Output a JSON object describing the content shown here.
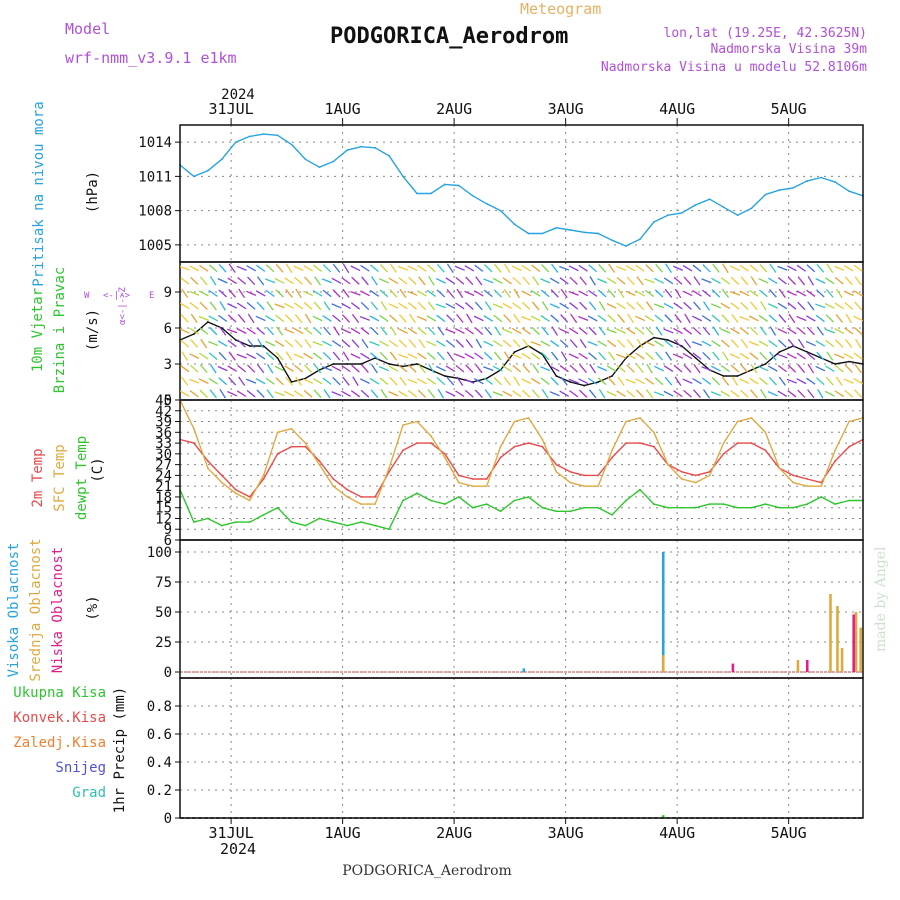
{
  "header": {
    "model_label": "Model",
    "model_name": "wrf-nmm_v3.9.1 e1km",
    "meteogram_label": "Meteogram",
    "station": "PODGORICA_Aerodrom",
    "lonlat": "lon,lat (19.25E, 42.3625N)",
    "altitude": "Nadmorska Visina 39m",
    "model_altitude": "Nadmorska Visina u modelu 52.8106m",
    "footer_station": "PODGORICA_Aerodrom",
    "credit": "made by Angel",
    "year": "2024"
  },
  "colors": {
    "pressure": "#29a3e0",
    "temp2m": "#e84a4a",
    "sfc": "#e0a940",
    "dew": "#2ec52e",
    "high_cloud": "#29a3e0",
    "mid_cloud": "#e0a940",
    "low_cloud": "#e0208a",
    "magenta_text": "#b050d8",
    "title_orange": "#e8b060"
  },
  "days": [
    "31JUL",
    "1AUG",
    "2AUG",
    "3AUG",
    "4AUG",
    "5AUG"
  ],
  "panels": {
    "pressure": {
      "ylabel_main": "Pritisak na nivou mora",
      "unit": "(hPa)"
    },
    "wind": {
      "ylabel_1": "10m Vjetar",
      "ylabel_2": "Brzina i Pravac",
      "unit": "(m/s)",
      "compass": [
        "W",
        "<-|->",
        "E",
        "N",
        "^",
        "|",
        "v",
        "S"
      ]
    },
    "temp": {
      "ylabel_2m": "2m Temp",
      "ylabel_sfc": "SFC Temp",
      "ylabel_dew": "dewpt Temp",
      "unit": "(C)"
    },
    "cloud": {
      "ylabel_high": "Visoka Oblacnost",
      "ylabel_mid": "Srednja Oblacnost",
      "ylabel_low": "Niska Oblacnost",
      "unit": "(%)"
    },
    "precip": {
      "legend": [
        "Ukupna Kisa",
        "Konvek.Kisa",
        "Zaledj.Kisa",
        "Snijeg",
        "Grad"
      ],
      "legend_colors": [
        "#2ec52e",
        "#e84a4a",
        "#f08030",
        "#5050d8",
        "#30c0b0"
      ],
      "ylabel": "1hr Precip (mm)"
    }
  },
  "chart_data": [
    {
      "type": "line",
      "title": "",
      "xlabel": "",
      "ylabel": "(hPa)",
      "x_unit": "hours from start of plot (31 JUL 2024 ~ 13 UTC)",
      "ylim": [
        1003.5,
        1015.5
      ],
      "yticks": [
        1005,
        1008,
        1011,
        1014
      ],
      "series": [
        {
          "name": "Pritisak na nivou mora",
          "x": [
            0,
            3,
            6,
            9,
            12,
            15,
            18,
            21,
            24,
            27,
            30,
            33,
            36,
            39,
            42,
            45,
            48,
            51,
            54,
            57,
            60,
            63,
            66,
            69,
            72,
            75,
            78,
            81,
            84,
            87,
            90,
            93,
            96,
            99,
            102,
            105,
            108,
            111,
            114,
            117,
            120,
            123,
            126,
            129,
            132,
            135,
            138,
            141,
            144,
            147
          ],
          "values": [
            1012.0,
            1011.0,
            1011.5,
            1012.5,
            1014.0,
            1014.5,
            1014.7,
            1014.6,
            1013.8,
            1012.5,
            1011.8,
            1012.3,
            1013.3,
            1013.6,
            1013.5,
            1012.8,
            1011.0,
            1009.5,
            1009.5,
            1010.3,
            1010.2,
            1009.3,
            1008.6,
            1008.0,
            1006.8,
            1006.0,
            1006.0,
            1006.5,
            1006.3,
            1006.1,
            1006.0,
            1005.4,
            1004.9,
            1005.5,
            1007.0,
            1007.6,
            1007.8,
            1008.5,
            1009.0,
            1008.3,
            1007.6,
            1008.2,
            1009.4,
            1009.8,
            1010.0,
            1010.6,
            1010.9,
            1010.5,
            1009.7,
            1009.3
          ]
        }
      ]
    },
    {
      "type": "line",
      "title": "",
      "xlabel": "",
      "ylabel": "(m/s)",
      "ylim": [
        0,
        11.5
      ],
      "yticks": [
        0,
        3,
        6,
        9
      ],
      "series": [
        {
          "name": "Brzina",
          "x": [
            0,
            3,
            6,
            9,
            12,
            15,
            18,
            21,
            24,
            27,
            30,
            33,
            36,
            39,
            42,
            45,
            48,
            51,
            54,
            57,
            60,
            63,
            66,
            69,
            72,
            75,
            78,
            81,
            84,
            87,
            90,
            93,
            96,
            99,
            102,
            105,
            108,
            111,
            114,
            117,
            120,
            123,
            126,
            129,
            132,
            135,
            138,
            141,
            144,
            147
          ],
          "values": [
            5.0,
            5.5,
            6.5,
            6.0,
            5.0,
            4.5,
            4.5,
            3.5,
            1.5,
            1.8,
            2.5,
            3.0,
            3.0,
            3.0,
            3.5,
            3.0,
            2.8,
            3.0,
            2.5,
            2.0,
            1.8,
            1.5,
            1.8,
            2.5,
            4.0,
            4.5,
            3.8,
            2.0,
            1.5,
            1.2,
            1.5,
            2.0,
            3.5,
            4.5,
            5.2,
            5.0,
            4.5,
            3.5,
            2.5,
            2.0,
            2.0,
            2.5,
            3.0,
            4.0,
            4.5,
            4.0,
            3.5,
            3.0,
            3.2,
            3.0
          ]
        }
      ]
    },
    {
      "type": "line",
      "title": "",
      "xlabel": "",
      "ylabel": "(C)",
      "ylim": [
        6,
        45
      ],
      "yticks": [
        6,
        9,
        12,
        15,
        18,
        21,
        24,
        27,
        30,
        33,
        36,
        39,
        42,
        45
      ],
      "series": [
        {
          "name": "2m Temp",
          "x": [
            0,
            3,
            6,
            9,
            12,
            15,
            18,
            21,
            24,
            27,
            30,
            33,
            36,
            39,
            42,
            45,
            48,
            51,
            54,
            57,
            60,
            63,
            66,
            69,
            72,
            75,
            78,
            81,
            84,
            87,
            90,
            93,
            96,
            99,
            102,
            105,
            108,
            111,
            114,
            117,
            120,
            123,
            126,
            129,
            132,
            135,
            138,
            141,
            144,
            147
          ],
          "values": [
            34,
            33,
            28,
            24,
            20,
            18,
            23,
            30,
            32,
            32,
            28,
            23,
            20,
            18,
            18,
            25,
            31,
            33,
            33,
            30,
            24,
            23,
            23,
            29,
            32,
            33,
            32,
            27,
            25,
            24,
            24,
            29,
            33,
            33,
            32,
            27,
            25,
            24,
            25,
            30,
            33,
            33,
            31,
            26,
            24,
            23,
            22,
            28,
            32,
            34
          ]
        },
        {
          "name": "SFC Temp",
          "x": [
            0,
            3,
            6,
            9,
            12,
            15,
            18,
            21,
            24,
            27,
            30,
            33,
            36,
            39,
            42,
            45,
            48,
            51,
            54,
            57,
            60,
            63,
            66,
            69,
            72,
            75,
            78,
            81,
            84,
            87,
            90,
            93,
            96,
            99,
            102,
            105,
            108,
            111,
            114,
            117,
            120,
            123,
            126,
            129,
            132,
            135,
            138,
            141,
            144,
            147
          ],
          "values": [
            45,
            37,
            26,
            22,
            19,
            17,
            24,
            36,
            37,
            33,
            27,
            21,
            18,
            16,
            16,
            26,
            38,
            39,
            35,
            29,
            22,
            21,
            21,
            32,
            39,
            40,
            34,
            25,
            22,
            21,
            21,
            31,
            39,
            40,
            36,
            27,
            23,
            22,
            24,
            33,
            39,
            40,
            36,
            26,
            22,
            21,
            21,
            31,
            39,
            40
          ]
        },
        {
          "name": "dewpt Temp",
          "x": [
            0,
            3,
            6,
            9,
            12,
            15,
            18,
            21,
            24,
            27,
            30,
            33,
            36,
            39,
            42,
            45,
            48,
            51,
            54,
            57,
            60,
            63,
            66,
            69,
            72,
            75,
            78,
            81,
            84,
            87,
            90,
            93,
            96,
            99,
            102,
            105,
            108,
            111,
            114,
            117,
            120,
            123,
            126,
            129,
            132,
            135,
            138,
            141,
            144,
            147
          ],
          "values": [
            20,
            11,
            12,
            10,
            11,
            11,
            13,
            15,
            11,
            10,
            12,
            11,
            10,
            11,
            10,
            9,
            17,
            19,
            17,
            16,
            18,
            15,
            16,
            14,
            17,
            18,
            15,
            14,
            14,
            15,
            15,
            13,
            17,
            20,
            16,
            15,
            15,
            15,
            16,
            16,
            15,
            15,
            16,
            15,
            15,
            16,
            18,
            16,
            17,
            17
          ]
        }
      ]
    },
    {
      "type": "bar",
      "title": "",
      "xlabel": "",
      "ylabel": "(%)",
      "ylim": [
        -5,
        110
      ],
      "yticks": [
        0,
        25,
        50,
        75,
        100
      ],
      "series": [
        {
          "name": "Visoka Oblacnost",
          "x": [
            104,
            74
          ],
          "values": [
            100,
            3
          ]
        },
        {
          "name": "Srednja Oblacnost",
          "x": [
            104,
            133,
            140,
            141.5,
            142.5,
            145.5,
            146.5
          ],
          "values": [
            14,
            10,
            65,
            55,
            20,
            50,
            37
          ]
        },
        {
          "name": "Niska Oblacnost",
          "x": [
            119,
            135,
            145
          ],
          "values": [
            7,
            10,
            48
          ]
        }
      ]
    },
    {
      "type": "bar",
      "title": "",
      "xlabel": "",
      "ylabel": "1hr Precip (mm)",
      "ylim": [
        0,
        1.0
      ],
      "yticks": [
        0,
        0.2,
        0.4,
        0.6,
        0.8
      ],
      "series": [
        {
          "name": "Ukupna Kisa",
          "x": [
            104
          ],
          "values": [
            0.02
          ]
        }
      ]
    }
  ]
}
